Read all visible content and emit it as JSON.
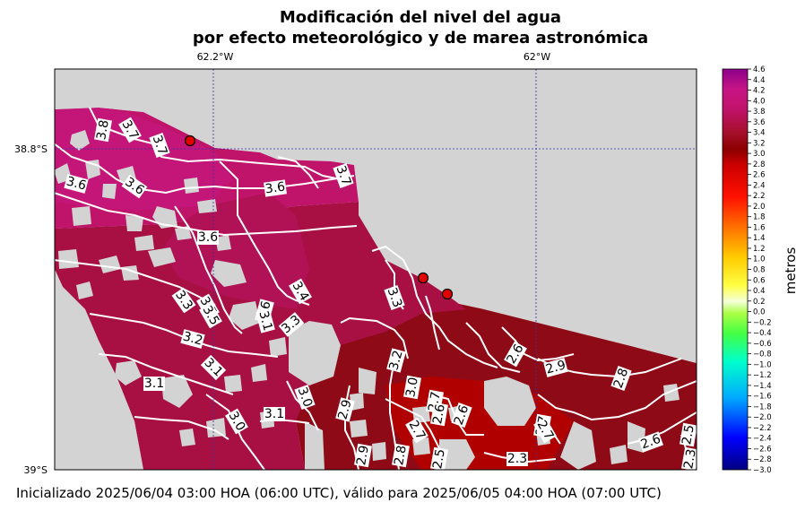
{
  "chart_data": {
    "type": "heatmap",
    "title": "Modificación del nivel del agua",
    "subtitle": "por efecto meteorológico y de marea astronómica",
    "footer": "Inicializado 2025/06/04 03:00 HOA (06:00 UTC), válido para 2025/06/05 04:00 HOA (07:00 UTC)",
    "x_ticks": [
      "62.2°W",
      "62°W"
    ],
    "y_ticks": [
      "38.8°S",
      "39°S"
    ],
    "colorbar": {
      "label": "metros",
      "range": [
        -3.0,
        4.6
      ],
      "ticks": [
        "4.6",
        "4.4",
        "4.2",
        "4.0",
        "3.8",
        "3.6",
        "3.4",
        "3.2",
        "3.0",
        "2.8",
        "2.6",
        "2.4",
        "2.2",
        "2.0",
        "1.8",
        "1.6",
        "1.4",
        "1.2",
        "1.0",
        "0.8",
        "0.6",
        "0.4",
        "0.2",
        "0.0",
        "−0.2",
        "−0.4",
        "−0.6",
        "−0.8",
        "−1.0",
        "−1.2",
        "−1.4",
        "−1.6",
        "−1.8",
        "−2.0",
        "−2.2",
        "−2.4",
        "−2.6",
        "−2.8",
        "−3.0"
      ]
    },
    "contour_labels": [
      "3.8",
      "3.7",
      "3.7",
      "3.6",
      "3.6",
      "3.6",
      "3.7",
      "3.6",
      "3.4",
      "3.3",
      "3.5",
      "3.6",
      "3.5",
      "3.3",
      "3.1",
      "3.3",
      "3.2",
      "3.1",
      "3.1",
      "3.2",
      "3.0",
      "3.1",
      "3.0",
      "2.9",
      "3.0",
      "2.9",
      "2.8",
      "2.7",
      "2.6",
      "2.7",
      "2.6",
      "2.5",
      "2.7",
      "2.6",
      "2.9",
      "2.8",
      "2.7",
      "2.3",
      "2.6",
      "2.5",
      "2.3"
    ],
    "stations": 3,
    "grid": true,
    "land_color": "#d3d3d3"
  }
}
